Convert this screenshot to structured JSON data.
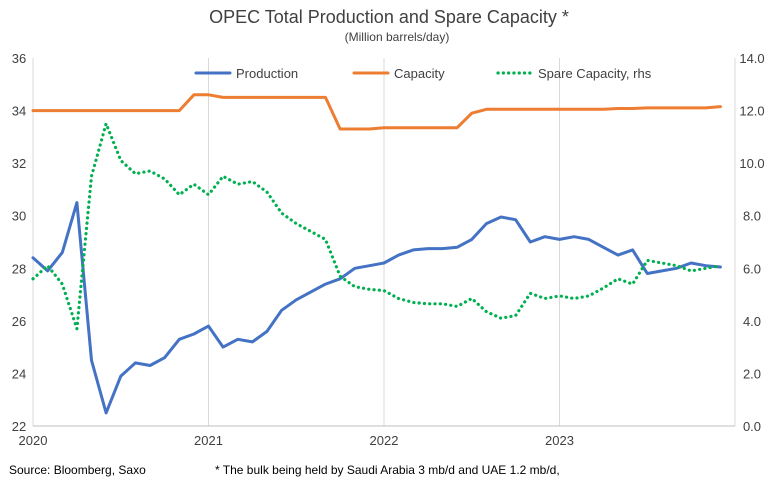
{
  "chart_data": {
    "type": "line",
    "title": "OPEC Total Production and Spare Capacity *",
    "subtitle": "(Million barrels/day)",
    "x_ticks": [
      "2020",
      "2021",
      "2022",
      "2023"
    ],
    "y_left": {
      "ylim": [
        22,
        36
      ],
      "ticks": [
        "22",
        "24",
        "26",
        "28",
        "30",
        "32",
        "34",
        "36"
      ]
    },
    "y_right": {
      "ylim": [
        0,
        14
      ],
      "ticks": [
        "0.0",
        "2.0",
        "4.0",
        "6.0",
        "8.0",
        "10.0",
        "12.0",
        "14.0"
      ]
    },
    "grid": "vertical",
    "legend_position": "top",
    "series": [
      {
        "name": "Production",
        "axis": "left",
        "color": "#4472C4",
        "style": "solid",
        "x": [
          "2020-01",
          "2020-02",
          "2020-03",
          "2020-04",
          "2020-05",
          "2020-06",
          "2020-07",
          "2020-08",
          "2020-09",
          "2020-10",
          "2020-11",
          "2020-12",
          "2021-01",
          "2021-02",
          "2021-03",
          "2021-04",
          "2021-05",
          "2021-06",
          "2021-07",
          "2021-08",
          "2021-09",
          "2021-10",
          "2021-11",
          "2021-12",
          "2022-01",
          "2022-02",
          "2022-03",
          "2022-04",
          "2022-05",
          "2022-06",
          "2022-07",
          "2022-08",
          "2022-09",
          "2022-10",
          "2022-11",
          "2022-12",
          "2023-01",
          "2023-02",
          "2023-03",
          "2023-04",
          "2023-05",
          "2023-06",
          "2023-07",
          "2023-08",
          "2023-09",
          "2023-10",
          "2023-11",
          "2023-12"
        ],
        "values": [
          28.4,
          27.9,
          28.6,
          30.5,
          24.5,
          22.5,
          23.9,
          24.4,
          24.3,
          24.6,
          25.3,
          25.5,
          25.8,
          25.0,
          25.3,
          25.2,
          25.6,
          26.4,
          26.8,
          27.1,
          27.4,
          27.6,
          28.0,
          28.1,
          28.2,
          28.5,
          28.7,
          28.75,
          28.75,
          28.8,
          29.1,
          29.7,
          29.95,
          29.85,
          29.0,
          29.2,
          29.1,
          29.2,
          29.1,
          28.8,
          28.5,
          28.7,
          27.8,
          27.9,
          28.0,
          28.2,
          28.1,
          28.05
        ]
      },
      {
        "name": "Capacity",
        "axis": "left",
        "color": "#ED7D31",
        "style": "solid",
        "x": [
          "2020-01",
          "2020-02",
          "2020-03",
          "2020-04",
          "2020-05",
          "2020-06",
          "2020-07",
          "2020-08",
          "2020-09",
          "2020-10",
          "2020-11",
          "2020-12",
          "2021-01",
          "2021-02",
          "2021-03",
          "2021-04",
          "2021-05",
          "2021-06",
          "2021-07",
          "2021-08",
          "2021-09",
          "2021-10",
          "2021-11",
          "2021-12",
          "2022-01",
          "2022-02",
          "2022-03",
          "2022-04",
          "2022-05",
          "2022-06",
          "2022-07",
          "2022-08",
          "2022-09",
          "2022-10",
          "2022-11",
          "2022-12",
          "2023-01",
          "2023-02",
          "2023-03",
          "2023-04",
          "2023-05",
          "2023-06",
          "2023-07",
          "2023-08",
          "2023-09",
          "2023-10",
          "2023-11",
          "2023-12"
        ],
        "values": [
          34.0,
          34.0,
          34.0,
          34.0,
          34.0,
          34.0,
          34.0,
          34.0,
          34.0,
          34.0,
          34.0,
          34.6,
          34.6,
          34.5,
          34.5,
          34.5,
          34.5,
          34.5,
          34.5,
          34.5,
          34.5,
          33.3,
          33.3,
          33.3,
          33.35,
          33.35,
          33.35,
          33.35,
          33.35,
          33.35,
          33.9,
          34.05,
          34.05,
          34.05,
          34.05,
          34.05,
          34.05,
          34.05,
          34.05,
          34.05,
          34.08,
          34.08,
          34.1,
          34.1,
          34.1,
          34.1,
          34.1,
          34.15
        ]
      },
      {
        "name": "Spare Capacity, rhs",
        "axis": "right",
        "color": "#00B050",
        "style": "dotted",
        "x": [
          "2020-01",
          "2020-02",
          "2020-03",
          "2020-04",
          "2020-05",
          "2020-06",
          "2020-07",
          "2020-08",
          "2020-09",
          "2020-10",
          "2020-11",
          "2020-12",
          "2021-01",
          "2021-02",
          "2021-03",
          "2021-04",
          "2021-05",
          "2021-06",
          "2021-07",
          "2021-08",
          "2021-09",
          "2021-10",
          "2021-11",
          "2021-12",
          "2022-01",
          "2022-02",
          "2022-03",
          "2022-04",
          "2022-05",
          "2022-06",
          "2022-07",
          "2022-08",
          "2022-09",
          "2022-10",
          "2022-11",
          "2022-12",
          "2023-01",
          "2023-02",
          "2023-03",
          "2023-04",
          "2023-05",
          "2023-06",
          "2023-07",
          "2023-08",
          "2023-09",
          "2023-10",
          "2023-11",
          "2023-12"
        ],
        "values": [
          5.6,
          6.1,
          5.4,
          3.7,
          9.5,
          11.5,
          10.1,
          9.6,
          9.7,
          9.4,
          8.8,
          9.2,
          8.8,
          9.5,
          9.2,
          9.3,
          8.9,
          8.1,
          7.7,
          7.4,
          7.1,
          5.7,
          5.3,
          5.2,
          5.15,
          4.85,
          4.7,
          4.65,
          4.65,
          4.55,
          4.85,
          4.35,
          4.1,
          4.2,
          5.05,
          4.85,
          4.95,
          4.85,
          4.95,
          5.25,
          5.6,
          5.4,
          6.3,
          6.2,
          6.1,
          5.9,
          6.0,
          6.1
        ]
      }
    ]
  },
  "footer": {
    "source": "Source: Bloomberg, Saxo",
    "note": "* The bulk being held by Saudi Arabia 3 mb/d and UAE 1.2 mb/d,"
  }
}
